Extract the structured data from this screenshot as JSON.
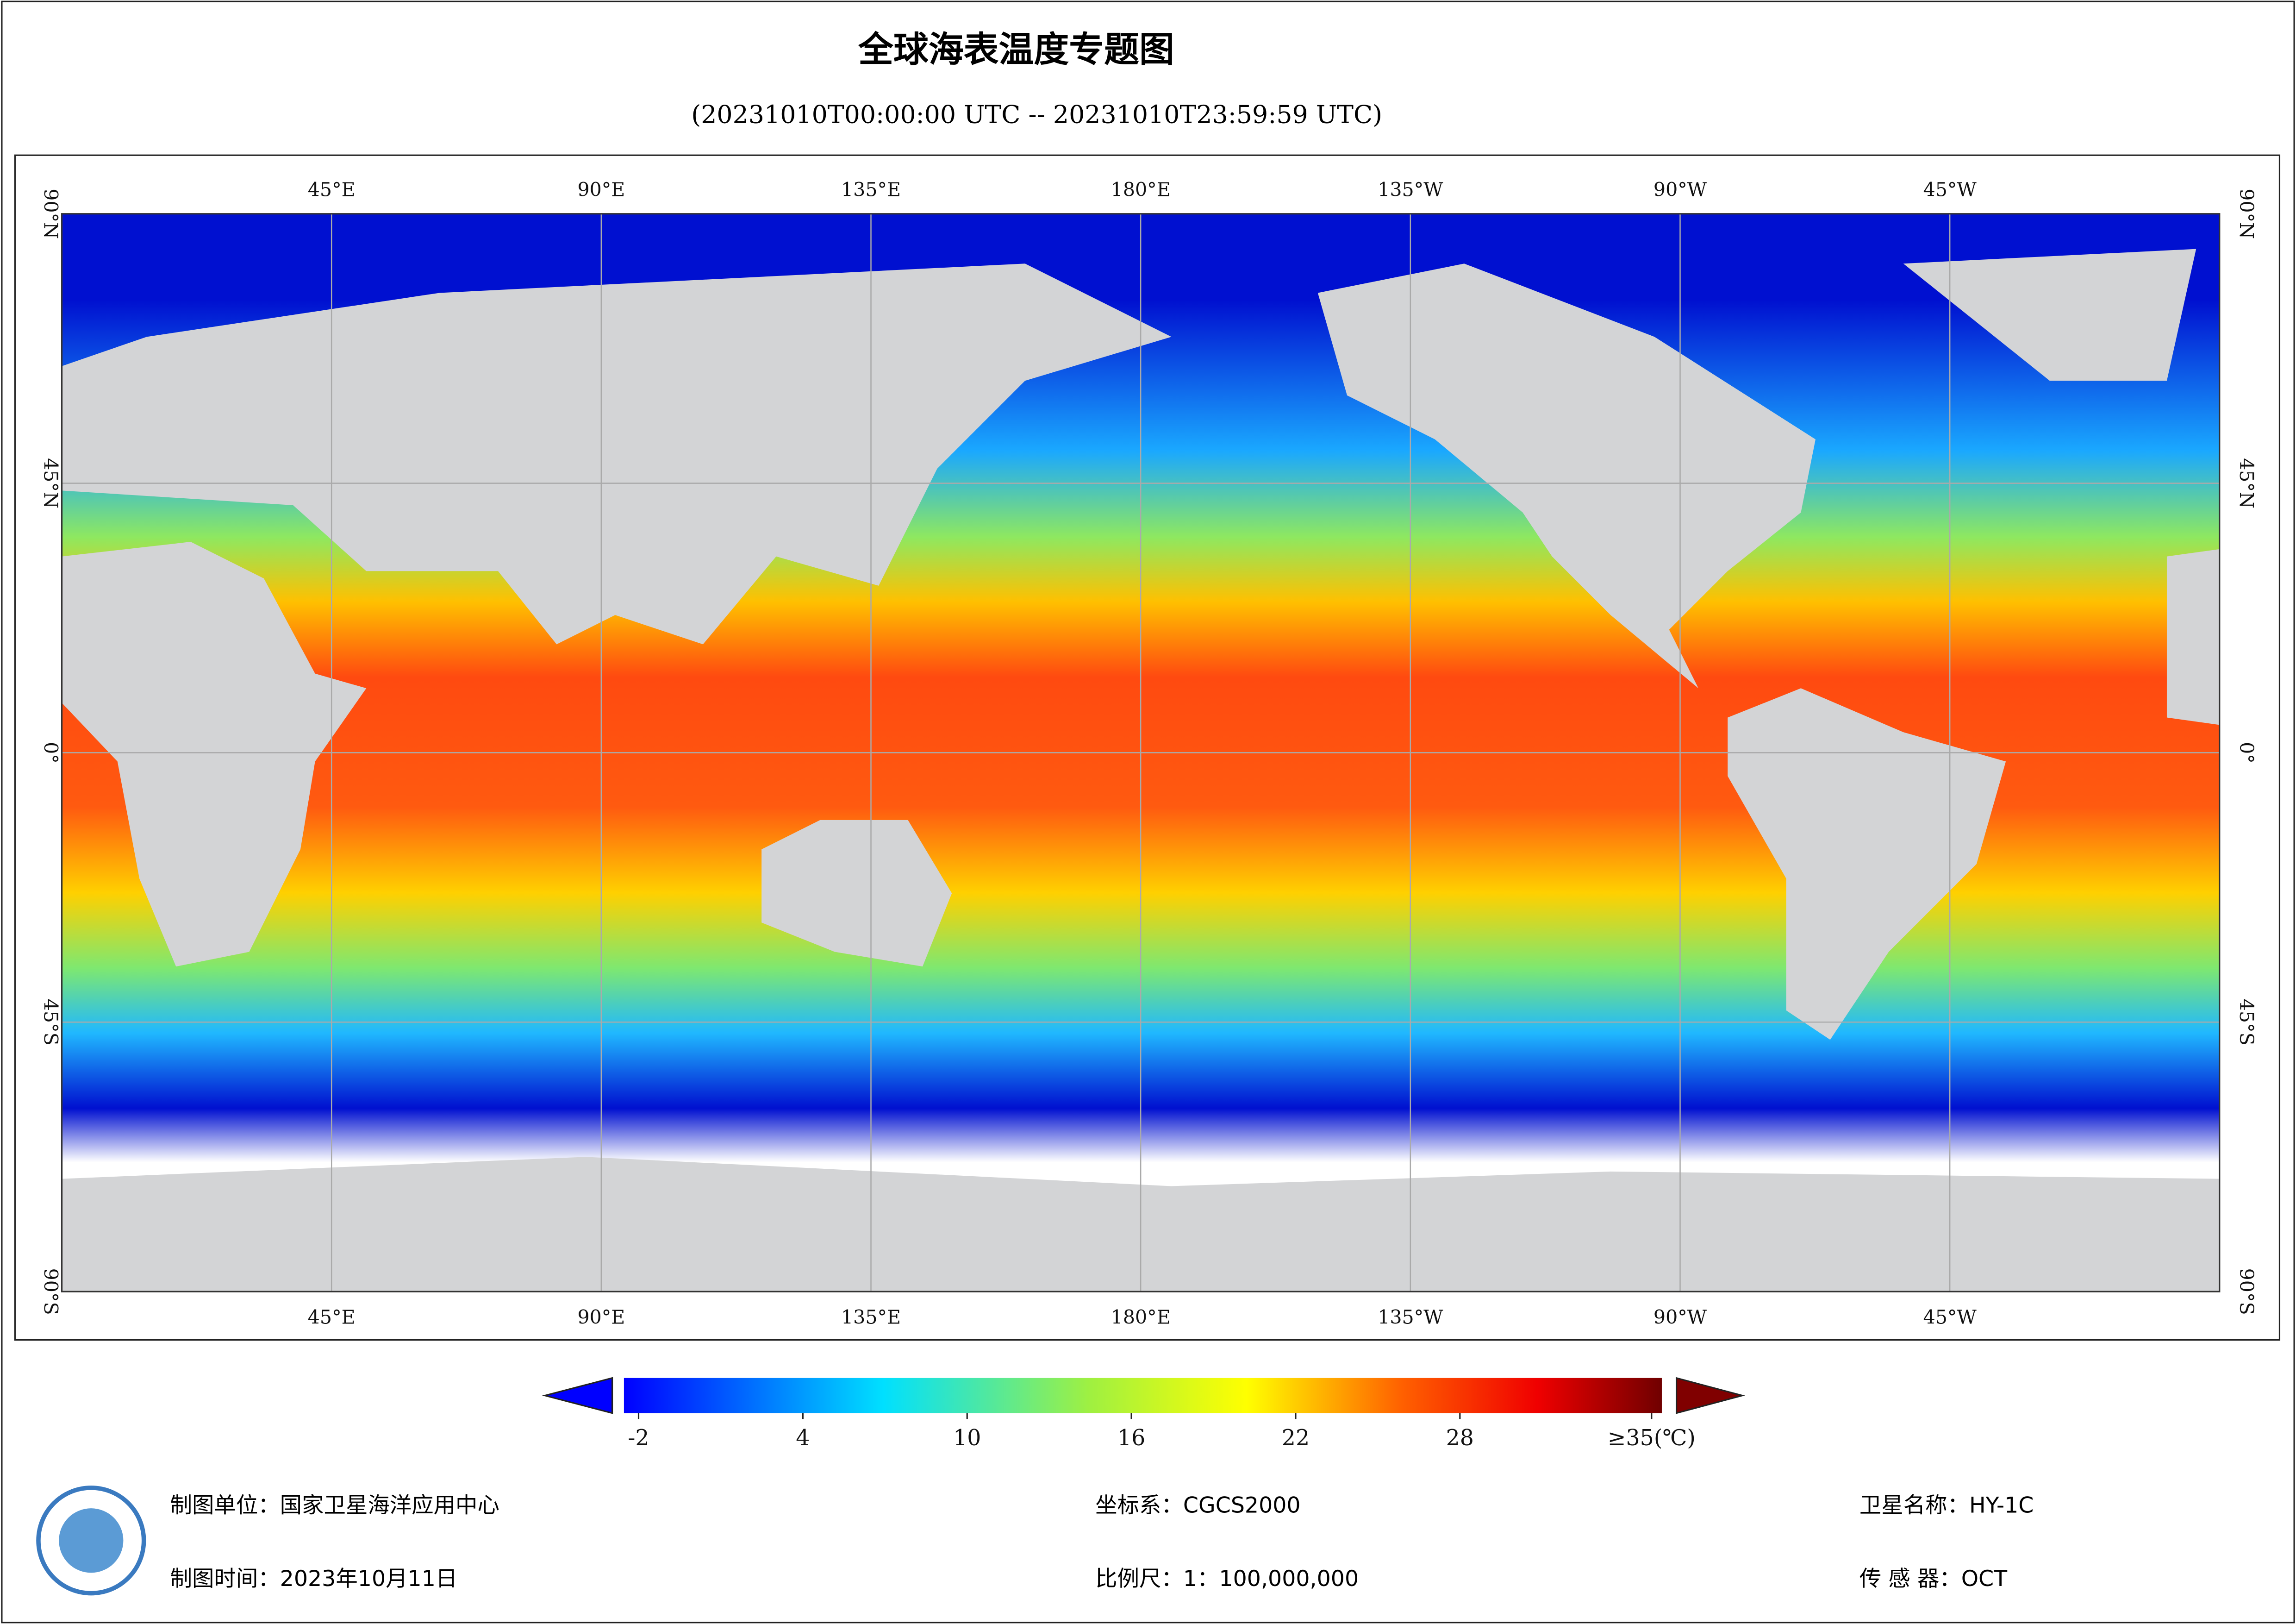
{
  "title": "全球海表温度专题图",
  "subtitle": "(20231010T00:00:00 UTC -- 20231010T23:59:59 UTC)",
  "map": {
    "lon_ticks": [
      {
        "value": 45,
        "label": "45°E"
      },
      {
        "value": 90,
        "label": "90°E"
      },
      {
        "value": 135,
        "label": "135°E"
      },
      {
        "value": 180,
        "label": "180°E"
      },
      {
        "value": 225,
        "label": "135°W"
      },
      {
        "value": 270,
        "label": "90°W"
      },
      {
        "value": 315,
        "label": "45°W"
      }
    ],
    "lat_ticks": [
      {
        "value": 90,
        "label": "90°N"
      },
      {
        "value": 45,
        "label": "45°N"
      },
      {
        "value": 0,
        "label": "0°"
      },
      {
        "value": -45,
        "label": "45°S"
      },
      {
        "value": -90,
        "label": "90°S"
      }
    ]
  },
  "colorbar": {
    "range": [
      -2,
      35
    ],
    "ticks": [
      -2,
      4,
      10,
      16,
      22,
      28,
      {
        "value": 35,
        "label": "≥35(℃)"
      }
    ]
  },
  "footer": {
    "unit": "制图单位：国家卫星海洋应用中心",
    "time": "制图时间：2023年10月11日",
    "crs": "坐标系：CGCS2000",
    "scale": "比例尺：1：100,000,000",
    "satellite": "卫星名称：HY-1C",
    "sensor": "传  感  器：OCT"
  }
}
